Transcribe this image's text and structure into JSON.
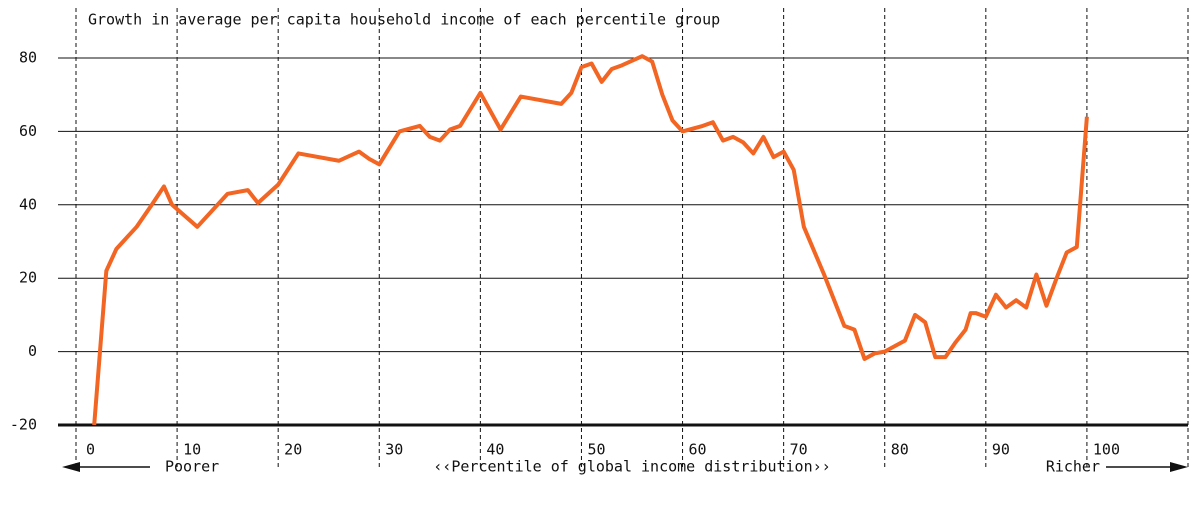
{
  "chart_data": {
    "type": "line",
    "title": "Growth in average per capita household income of each percentile group",
    "xlabel": "‹‹Percentile of global income distribution››",
    "left_note": "Poorer",
    "right_note": "Richer",
    "x": [
      1.8,
      3,
      4,
      6,
      7.5,
      8.7,
      9.5,
      12,
      15,
      17,
      18,
      20,
      22,
      26,
      28,
      29,
      30,
      32,
      34,
      35,
      36,
      37,
      38,
      40,
      42,
      44,
      48,
      49,
      50,
      51,
      52,
      53,
      54,
      56,
      57,
      58,
      59,
      60,
      62,
      63,
      64,
      65,
      66,
      67,
      68,
      69,
      70,
      71,
      72,
      74,
      76,
      77,
      78,
      79,
      80,
      82,
      83,
      84,
      85,
      86,
      87,
      88,
      88.5,
      89,
      90,
      91,
      92,
      93,
      94,
      95,
      96,
      97,
      98,
      99,
      100
    ],
    "series": [
      {
        "name": "Growth",
        "color": "#f26522",
        "values": [
          -20,
          22,
          28,
          34,
          40,
          45,
          40,
          34,
          43,
          44,
          40.5,
          45.5,
          54,
          52,
          54.5,
          52.5,
          51,
          60,
          61.5,
          58.5,
          57.5,
          60.5,
          61.5,
          70.5,
          60.5,
          69.5,
          67.5,
          70.5,
          77.5,
          78.5,
          73.5,
          77,
          78,
          80.5,
          79,
          70,
          63,
          60,
          61.5,
          62.5,
          57.5,
          58.5,
          57,
          54,
          58.5,
          53,
          54.5,
          49.5,
          34,
          21,
          7,
          6,
          -2,
          -0.5,
          0,
          3,
          10,
          8,
          -1.5,
          -1.5,
          2.5,
          6,
          10.5,
          10.5,
          9.5,
          15.5,
          12,
          14,
          12,
          21,
          12.5,
          20,
          27,
          28.5,
          64
        ]
      }
    ],
    "xlim": [
      0,
      110
    ],
    "xticks": [
      0,
      10,
      20,
      30,
      40,
      50,
      60,
      70,
      80,
      90,
      100
    ],
    "ylim": [
      -20,
      80
    ],
    "yticks": [
      -20,
      0,
      20,
      40,
      60,
      80
    ],
    "grid": true
  }
}
